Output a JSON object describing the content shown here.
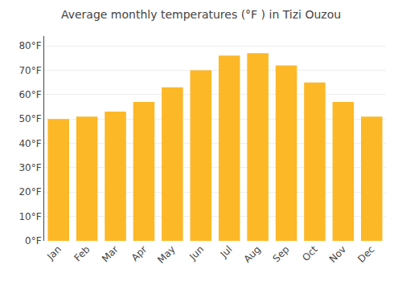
{
  "chart_data": {
    "type": "bar",
    "title": "Average monthly temperatures (°F ) in Tizi Ouzou",
    "categories": [
      "Jan",
      "Feb",
      "Mar",
      "Apr",
      "May",
      "Jun",
      "Jul",
      "Aug",
      "Sep",
      "Oct",
      "Nov",
      "Dec"
    ],
    "values": [
      50,
      51,
      53,
      57,
      63,
      70,
      76,
      77,
      72,
      65,
      57,
      51
    ],
    "color": "#FDB827",
    "ylim": [
      0,
      84
    ],
    "yticks": [
      {
        "value": 0,
        "label": "0°F"
      },
      {
        "value": 10,
        "label": "10°F"
      },
      {
        "value": 20,
        "label": "20°F"
      },
      {
        "value": 30,
        "label": "30°F"
      },
      {
        "value": 40,
        "label": "40°F"
      },
      {
        "value": 50,
        "label": "50°F"
      },
      {
        "value": 60,
        "label": "60°F"
      },
      {
        "value": 70,
        "label": "70°F"
      },
      {
        "value": 80,
        "label": "80°F"
      }
    ],
    "grid": true
  }
}
